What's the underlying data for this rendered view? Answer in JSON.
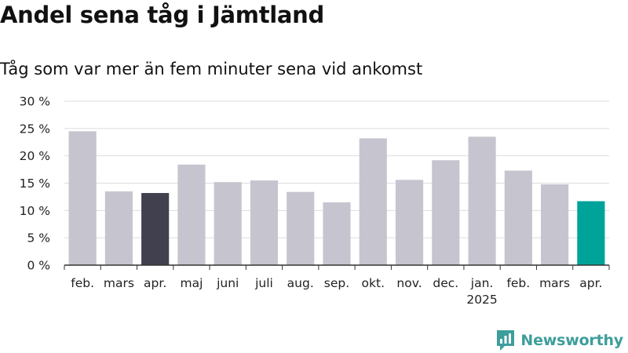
{
  "header": {
    "title": "Andel sena tåg i Jämtland",
    "subtitle": "Tåg som var mer än fem minuter sena vid ankomst"
  },
  "brand": {
    "name": "Newsworthy",
    "logo_icon": "newsworthy-bar-chart-icon",
    "color": "#3d9e9b"
  },
  "colors": {
    "default_bar": "#c6c5cf",
    "highlight_previous": "#41404e",
    "highlight_current": "#00a39a",
    "gridline": "#dddddd",
    "axis": "#333333"
  },
  "chart_data": {
    "type": "bar",
    "title": "Andel sena tåg i Jämtland",
    "subtitle": "Tåg som var mer än fem minuter sena vid ankomst",
    "categories": [
      "feb.",
      "mars",
      "apr.",
      "maj",
      "juni",
      "juli",
      "aug.",
      "sep.",
      "okt.",
      "nov.",
      "dec.",
      "jan.",
      "feb.",
      "mars",
      "apr."
    ],
    "category_sublabels": [
      "",
      "",
      "",
      "",
      "",
      "",
      "",
      "",
      "",
      "",
      "",
      "2025",
      "",
      "",
      ""
    ],
    "values": [
      24.5,
      13.5,
      13.2,
      18.4,
      15.2,
      15.5,
      13.4,
      11.5,
      23.2,
      15.6,
      19.2,
      23.5,
      17.3,
      14.8,
      11.7
    ],
    "bar_highlights": [
      "",
      "",
      "previous",
      "",
      "",
      "",
      "",
      "",
      "",
      "",
      "",
      "",
      "",
      "",
      "current"
    ],
    "y_ticks": [
      "0 %",
      "5 %",
      "10 %",
      "15 %",
      "20 %",
      "25 %",
      "30 %"
    ],
    "y_tick_values": [
      0,
      5,
      10,
      15,
      20,
      25,
      30
    ],
    "ylim": [
      0,
      30
    ],
    "xlabel": "",
    "ylabel": "",
    "grid": true,
    "legend": "none"
  }
}
